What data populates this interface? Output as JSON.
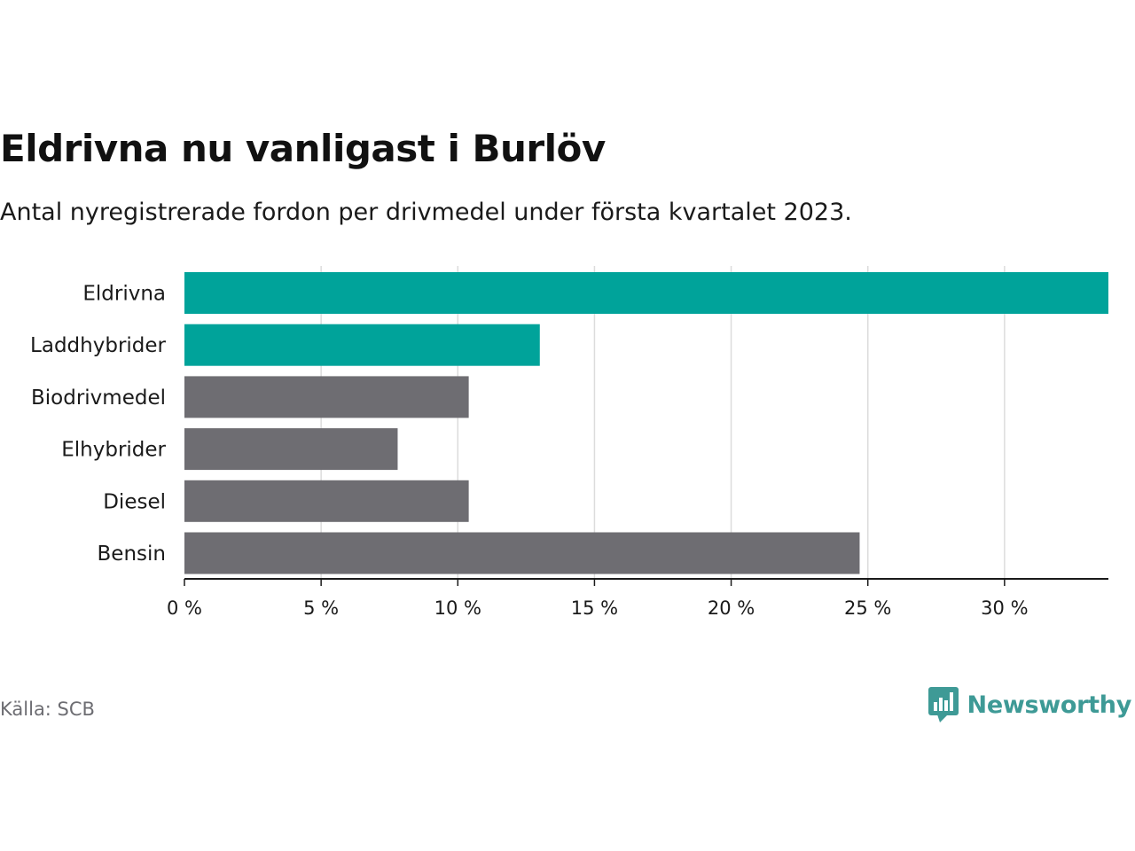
{
  "title": "Eldrivna nu vanligast i Burlöv",
  "subtitle": "Antal nyregistrerade fordon per drivmedel under första kvartalet 2023.",
  "source": "Källa: SCB",
  "brand": {
    "name": "Newsworthy",
    "icon": "newsworthy-logo-icon"
  },
  "colors": {
    "highlight": "#00a39a",
    "default": "#6e6d72",
    "grid": "#dcdcdc",
    "axis": "#1a1a1a",
    "brand": "#3e9a96"
  },
  "chart_data": {
    "type": "bar",
    "orientation": "horizontal",
    "categories": [
      "Eldrivna",
      "Laddhybrider",
      "Biodrivmedel",
      "Elhybrider",
      "Diesel",
      "Bensin"
    ],
    "values": [
      33.8,
      13.0,
      10.4,
      7.8,
      10.4,
      24.7
    ],
    "highlighted": [
      "Eldrivna",
      "Laddhybrider"
    ],
    "xlim": [
      0,
      33.8
    ],
    "xticks": [
      0,
      5,
      10,
      15,
      20,
      25,
      30
    ],
    "xtick_labels": [
      "0 %",
      "5 %",
      "10 %",
      "15 %",
      "20 %",
      "25 %",
      "30 %"
    ],
    "xlabel": "",
    "ylabel": "",
    "grid": true
  }
}
